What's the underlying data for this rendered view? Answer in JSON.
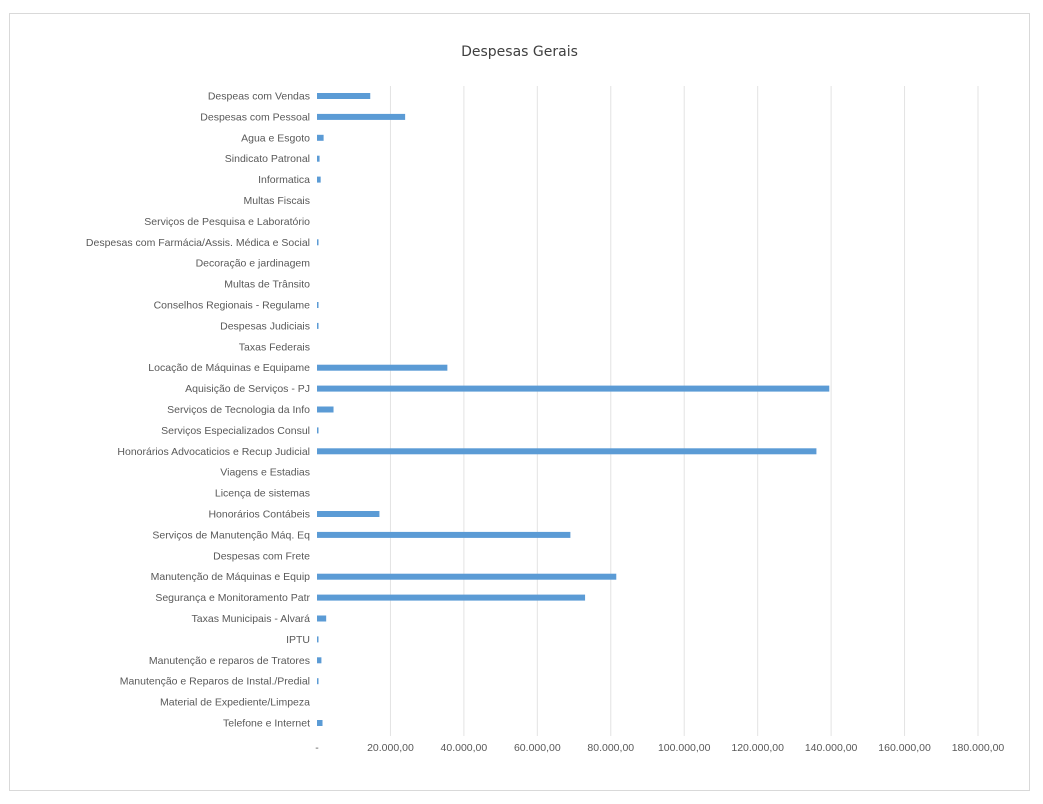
{
  "chart_data": {
    "type": "bar",
    "orientation": "horizontal",
    "title": "Despesas Gerais",
    "xlabel": "",
    "ylabel": "",
    "xlim": [
      0,
      180000
    ],
    "grid": true,
    "legend": "none",
    "bar_color": "#5b9bd5",
    "categories": [
      "Despeas com Vendas",
      "Despesas com Pessoal",
      "Agua e Esgoto",
      "Sindicato Patronal",
      "Informatica",
      "Multas Fiscais",
      "Serviços de Pesquisa e Laboratório",
      "Despesas com Farmácia/Assis. Médica e Social",
      "Decoração e jardinagem",
      "Multas de Trânsito",
      "Conselhos Regionais - Regulame",
      "Despesas Judiciais",
      "Taxas Federais",
      "Locação de Máquinas e Equipame",
      "Aquisição de Serviços - PJ",
      "Serviços de Tecnologia da Info",
      "Serviços Especializados Consul",
      "Honorários Advocaticios e Recup Judicial",
      "Viagens e Estadias",
      "Licença de sistemas",
      "Honorários Contábeis",
      "Serviços de Manutenção Máq. Eq",
      "Despesas com Frete",
      "Manutenção de Máquinas e Equip",
      "Segurança e Monitoramento Patr",
      "Taxas Municipais - Alvará",
      "IPTU",
      "Manutenção e reparos de Tratores",
      "Manutenção e Reparos de Instal./Predial",
      "Material de Expediente/Limpeza",
      "Telefone e Internet"
    ],
    "values": [
      14500,
      24000,
      1800,
      700,
      1000,
      0,
      0,
      300,
      0,
      0,
      300,
      300,
      0,
      35500,
      139500,
      4500,
      300,
      136000,
      0,
      0,
      17000,
      69000,
      0,
      81500,
      73000,
      2500,
      300,
      1200,
      300,
      0,
      1500
    ],
    "x_ticks": [
      0,
      20000,
      40000,
      60000,
      80000,
      100000,
      120000,
      140000,
      160000,
      180000
    ],
    "x_tick_labels": [
      "-",
      "20.000,00",
      "40.000,00",
      "60.000,00",
      "80.000,00",
      "100.000,00",
      "120.000,00",
      "140.000,00",
      "160.000,00",
      "180.000,00"
    ]
  }
}
